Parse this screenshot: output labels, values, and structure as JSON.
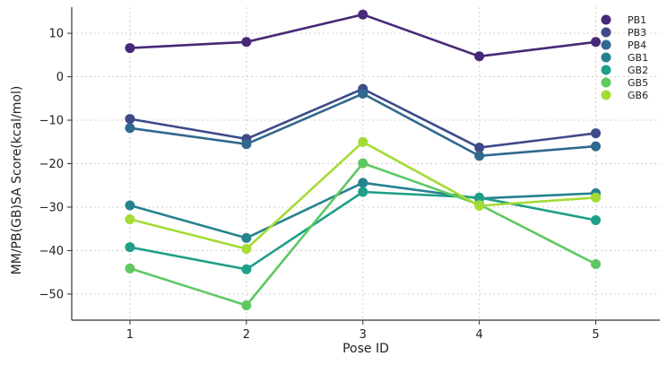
{
  "chart_data": {
    "type": "line",
    "title": "",
    "xlabel": "Pose ID",
    "ylabel": "MM/PB(GB)SA Score(kcal/mol)",
    "x": [
      1,
      2,
      3,
      4,
      5
    ],
    "x_ticks": [
      "1",
      "2",
      "3",
      "4",
      "5"
    ],
    "xlim": [
      0.5,
      5.55
    ],
    "y_ticks": [
      "10",
      "0",
      "−10",
      "−20",
      "−30",
      "−40",
      "−50"
    ],
    "y_tick_values": [
      10,
      0,
      -10,
      -20,
      -30,
      -40,
      -50
    ],
    "ylim": [
      -56,
      16
    ],
    "grid": true,
    "legend_placement": "top-right",
    "series": [
      {
        "name": "PB1",
        "color": "#482878",
        "values": [
          6.6,
          8.0,
          14.3,
          4.7,
          8.0
        ]
      },
      {
        "name": "PB3",
        "color": "#3e4a89",
        "values": [
          -9.7,
          -14.3,
          -2.8,
          -16.3,
          -13.0
        ]
      },
      {
        "name": "PB4",
        "color": "#31688e",
        "values": [
          -11.8,
          -15.5,
          -3.9,
          -18.2,
          -16.0
        ]
      },
      {
        "name": "GB1",
        "color": "#26828e",
        "values": [
          -29.6,
          -37.1,
          -24.4,
          -28.0,
          -26.8
        ]
      },
      {
        "name": "GB2",
        "color": "#1f9e89",
        "values": [
          -39.2,
          -44.3,
          -26.5,
          -27.8,
          -33.0
        ]
      },
      {
        "name": "GB5",
        "color": "#5ec962",
        "values": [
          -44.1,
          -52.6,
          -19.9,
          -29.4,
          -43.1
        ]
      },
      {
        "name": "GB6",
        "color": "#a5db36",
        "values": [
          -32.8,
          -39.6,
          -15.0,
          -29.7,
          -27.8
        ]
      }
    ]
  }
}
